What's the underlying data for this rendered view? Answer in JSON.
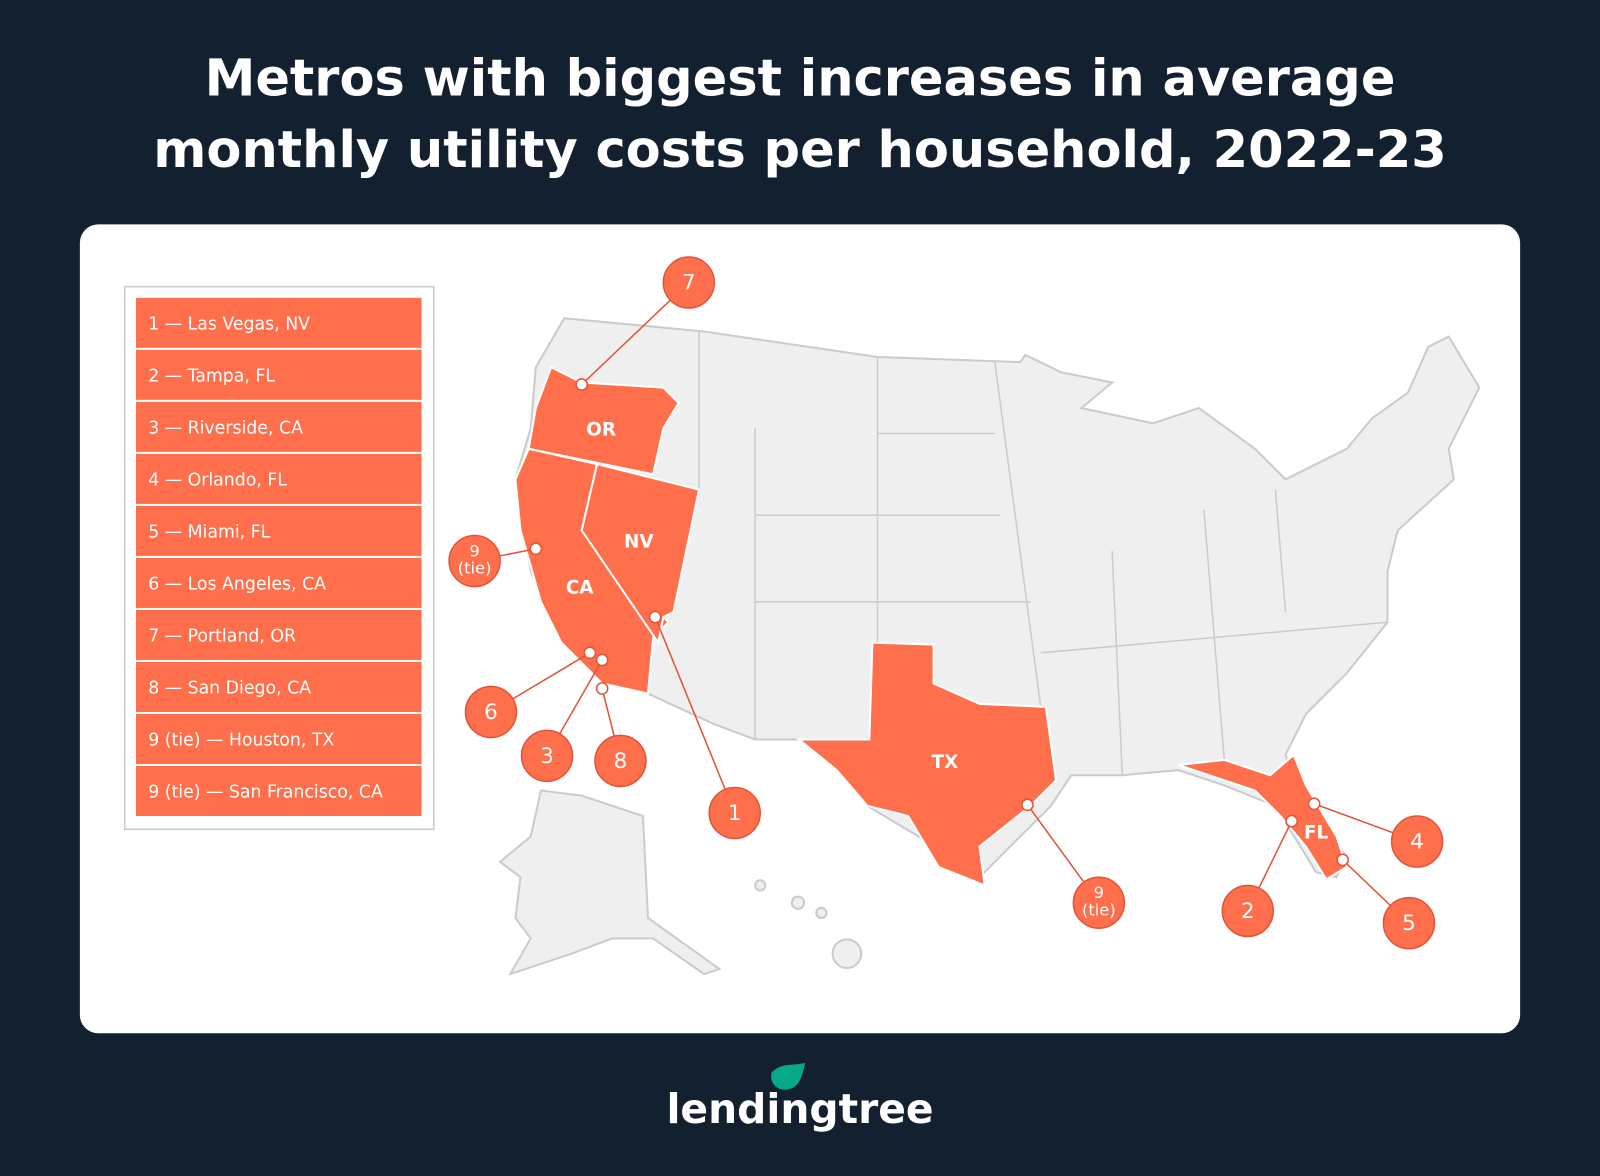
{
  "title": [
    "Metros with biggest increases in average",
    "monthly utility costs per household, 2022-23"
  ],
  "legend": [
    "1 — Las Vegas, NV",
    "2 — Tampa, FL",
    "3 — Riverside, CA",
    "4 — Orlando, FL",
    "5 — Miami, FL",
    "6 — Los Angeles, CA",
    "7 — Portland, OR",
    "8 — San Diego, CA",
    "9 (tie) — Houston, TX",
    "9 (tie) — San Francisco, CA"
  ],
  "states": [
    "OR",
    "NV",
    "CA",
    "TX",
    "FL"
  ],
  "markers": [
    {
      "label": "7"
    },
    {
      "label": "9",
      "sublabel": "(tie)"
    },
    {
      "label": "1"
    },
    {
      "label": "6"
    },
    {
      "label": "3"
    },
    {
      "label": "8"
    },
    {
      "label": "9",
      "sublabel": "(tie)"
    },
    {
      "label": "2"
    },
    {
      "label": "4"
    },
    {
      "label": "5"
    }
  ],
  "brand": "lendingtree"
}
